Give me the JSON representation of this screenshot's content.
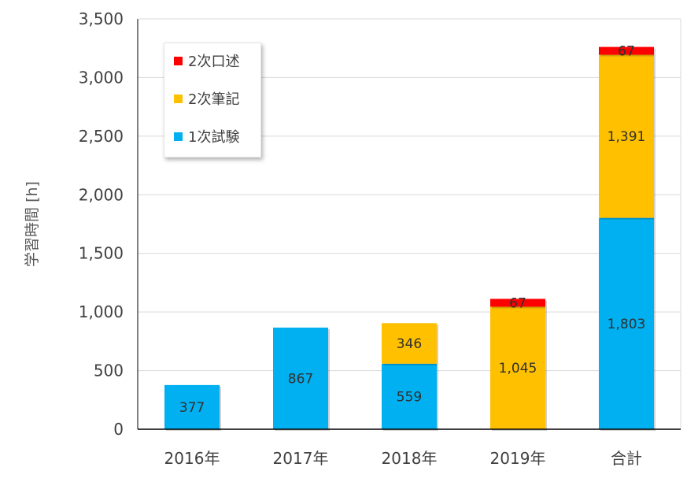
{
  "chart_data": {
    "type": "bar",
    "stacked": true,
    "categories": [
      "2016年",
      "2017年",
      "2018年",
      "2019年",
      "合計"
    ],
    "series": [
      {
        "name": "1次試験",
        "color": "#00b0f0",
        "values": [
          377,
          867,
          559,
          0,
          1803
        ],
        "labels": [
          "377",
          "867",
          "559",
          "",
          "1,803"
        ]
      },
      {
        "name": "2次筆記",
        "color": "#ffc000",
        "values": [
          0,
          0,
          346,
          1045,
          1391
        ],
        "labels": [
          "",
          "",
          "346",
          "1,045",
          "1,391"
        ]
      },
      {
        "name": "2次口述",
        "color": "#ff0000",
        "values": [
          0,
          0,
          0,
          67,
          67
        ],
        "labels": [
          "",
          "",
          "",
          "67",
          "67"
        ]
      }
    ],
    "ylabel": "学習時間 [h]",
    "ylim": [
      0,
      3500
    ],
    "yticks": [
      0,
      500,
      1000,
      1500,
      2000,
      2500,
      3000,
      3500
    ],
    "ytick_labels": [
      "0",
      "500",
      "1,000",
      "1,500",
      "2,000",
      "2,500",
      "3,000",
      "3,500"
    ],
    "grid": true,
    "legend_position": "top-left",
    "legend_order": [
      "2次口述",
      "2次筆記",
      "1次試験"
    ]
  }
}
